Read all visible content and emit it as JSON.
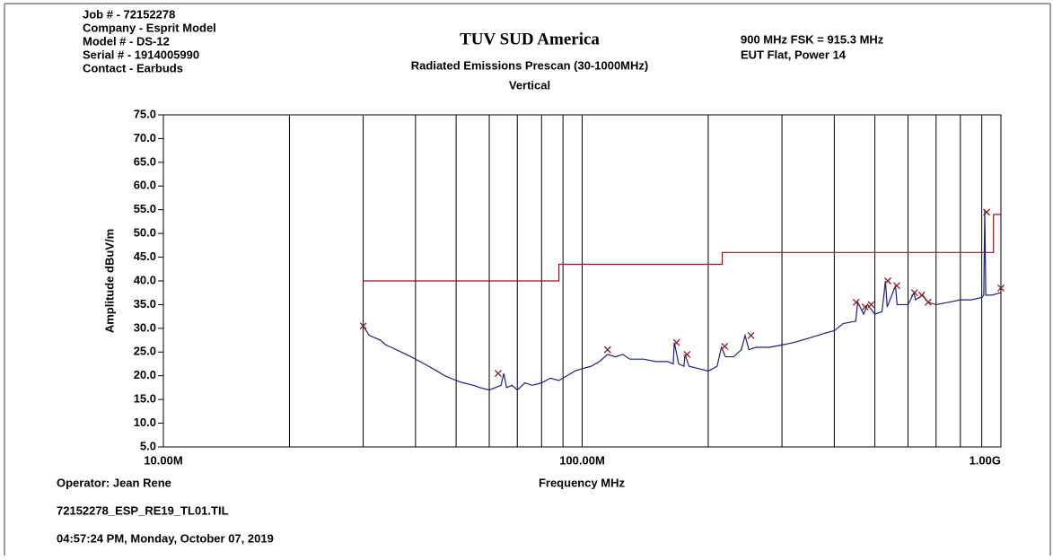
{
  "header": {
    "left": [
      "Job # - 72152278",
      "Company - Esprit Model",
      "Model # - DS-12",
      "Serial # - 1914005990",
      "Contact - Earbuds"
    ],
    "title": "TUV SUD America",
    "subtitle": "Radiated Emissions Prescan (30-1000MHz)",
    "polarization": "Vertical",
    "right": [
      "900 MHz FSK = 915.3 MHz",
      "EUT Flat, Power 14"
    ]
  },
  "footer": [
    "Operator: Jean Rene",
    "72152278_ESP_RE19_TL01.TIL",
    "04:57:24 PM, Monday, October 07, 2019"
  ],
  "chart_data": {
    "type": "line",
    "xlabel": "Frequency MHz",
    "ylabel": "Amplitude dBuV/m",
    "xscale": "log",
    "xlim": [
      10,
      1000
    ],
    "xticks": [
      {
        "value": 10,
        "label": "10.00M"
      },
      {
        "value": 100,
        "label": "100.00M"
      },
      {
        "value": 1000,
        "label": "1.00G"
      }
    ],
    "xminor": [
      20,
      30,
      40,
      50,
      60,
      70,
      80,
      90,
      200,
      300,
      400,
      500,
      600,
      700,
      800,
      900
    ],
    "ylim": [
      5,
      75
    ],
    "yticks": [
      {
        "value": 5,
        "label": "5.0"
      },
      {
        "value": 10,
        "label": "10.0"
      },
      {
        "value": 15,
        "label": "15.0"
      },
      {
        "value": 20,
        "label": "20.0"
      },
      {
        "value": 25,
        "label": "25.0"
      },
      {
        "value": 30,
        "label": "30.0"
      },
      {
        "value": 35,
        "label": "35.0"
      },
      {
        "value": 40,
        "label": "40.0"
      },
      {
        "value": 45,
        "label": "45.0"
      },
      {
        "value": 50,
        "label": "50.0"
      },
      {
        "value": 55,
        "label": "55.0"
      },
      {
        "value": 60,
        "label": "60.0"
      },
      {
        "value": 65,
        "label": "65.0"
      },
      {
        "value": 70,
        "label": "70.0"
      },
      {
        "value": 75,
        "label": "75.0"
      }
    ],
    "grid": "x",
    "series": [
      {
        "color": "#8b1a1a",
        "style": "line",
        "x": [
          30,
          88,
          88,
          216,
          216,
          960,
          960,
          1000
        ],
        "values": [
          40,
          40,
          43.5,
          43.5,
          46,
          46,
          54,
          54
        ]
      },
      {
        "color": "#1a237e",
        "style": "line",
        "x": [
          30,
          31,
          32,
          33,
          34,
          35,
          37,
          39,
          41,
          43,
          45,
          47,
          50,
          52,
          55,
          57,
          60,
          62,
          64,
          65,
          66,
          68,
          70,
          73,
          76,
          80,
          84,
          88,
          92,
          96,
          100,
          105,
          110,
          115,
          120,
          125,
          130,
          140,
          150,
          160,
          165,
          166,
          170,
          175,
          176,
          180,
          190,
          200,
          210,
          215,
          220,
          230,
          240,
          245,
          250,
          260,
          280,
          300,
          320,
          350,
          380,
          400,
          420,
          450,
          455,
          470,
          480,
          500,
          520,
          530,
          535,
          560,
          565,
          600,
          620,
          625,
          650,
          670,
          700,
          750,
          800,
          850,
          900,
          910,
          915,
          920,
          950,
          1000
        ],
        "values": [
          30.5,
          28.5,
          28,
          27.5,
          26.5,
          26,
          25,
          24,
          23,
          22,
          21,
          20,
          19,
          18.5,
          18,
          17.5,
          17,
          17.5,
          18,
          20.5,
          17.5,
          18,
          17,
          18.5,
          18,
          18.5,
          19.5,
          19,
          20,
          21,
          21.5,
          22,
          23,
          24.5,
          24,
          24.5,
          23.5,
          23.5,
          23,
          23,
          22.5,
          27,
          22.5,
          22,
          24.5,
          22,
          21.5,
          21,
          22,
          26,
          24,
          24,
          25.5,
          28.5,
          25.5,
          26,
          26,
          26.5,
          27,
          28,
          29,
          29.5,
          31,
          31.5,
          35.5,
          33,
          35,
          33,
          33.5,
          40,
          34.5,
          39,
          35,
          35,
          37.5,
          36,
          37,
          35.5,
          35,
          35.5,
          36,
          36,
          36.5,
          37,
          55,
          37,
          37,
          37.5
        ]
      },
      {
        "color": "#8b1a1a",
        "style": "markers",
        "x": [
          30,
          63,
          115,
          168,
          178,
          219,
          253,
          451,
          474,
          490,
          537,
          564,
          622,
          647,
          670,
          924,
          1000
        ],
        "values": [
          30.5,
          20.5,
          25.5,
          27,
          24.5,
          26.2,
          28.5,
          35.5,
          34.5,
          35,
          40,
          39,
          37.5,
          37,
          35.5,
          54.5,
          38.5
        ]
      }
    ]
  }
}
